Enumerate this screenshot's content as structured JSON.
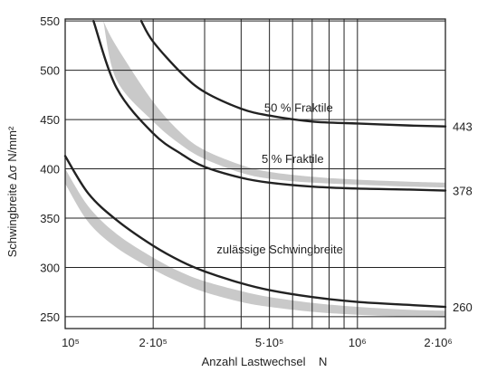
{
  "chart_data": {
    "type": "line",
    "title": "",
    "xlabel": "Anzahl Lastwechsel    N",
    "ylabel": "Schwingbreite Δσ N/mm²",
    "x_scale": "log",
    "xlim": [
      100000,
      2000000
    ],
    "ylim": [
      238,
      552
    ],
    "grid": true,
    "y_ticks": [
      250,
      300,
      350,
      400,
      450,
      500,
      550
    ],
    "y_tick_labels": [
      "250",
      "300",
      "350",
      "400",
      "450",
      "500",
      "550"
    ],
    "x_tick_labels": [
      {
        "x": 100000,
        "label": "10⁵"
      },
      {
        "x": 200000,
        "label": "2·10⁵"
      },
      {
        "x": 500000,
        "label": "5·10⁵"
      },
      {
        "x": 1000000,
        "label": "10⁶"
      },
      {
        "x": 2000000,
        "label": "2·10⁶"
      }
    ],
    "x_gridlines": [
      100000,
      200000,
      300000,
      400000,
      500000,
      600000,
      700000,
      800000,
      900000,
      1000000,
      2000000
    ],
    "series": [
      {
        "name": "50 % Fraktile",
        "end_label": "443",
        "color": "#222222",
        "x": [
          182000,
          200000,
          250000,
          300000,
          400000,
          500000,
          700000,
          1000000,
          1500000,
          2000000
        ],
        "y": [
          550,
          529,
          497,
          478,
          461,
          454,
          448,
          446,
          444,
          443
        ]
      },
      {
        "name": "5 % Fraktile",
        "end_label": "378",
        "color": "#222222",
        "x": [
          125000,
          150000,
          200000,
          250000,
          300000,
          400000,
          500000,
          700000,
          1000000,
          1500000,
          2000000
        ],
        "y": [
          550,
          482,
          436,
          415,
          402,
          391,
          386,
          382,
          380,
          379,
          378
        ]
      },
      {
        "name": "zulässige Schwingbreite",
        "end_label": "260",
        "color": "#222222",
        "x": [
          100000,
          120000,
          150000,
          200000,
          250000,
          300000,
          400000,
          500000,
          700000,
          1000000,
          1500000,
          2000000
        ],
        "y": [
          413,
          375,
          348,
          322,
          306,
          296,
          284,
          277,
          270,
          265,
          262,
          260
        ]
      }
    ],
    "bands": [
      {
        "color": "#c9c9c9",
        "x": [
          135000,
          150000,
          200000,
          250000,
          300000,
          400000,
          500000,
          700000,
          1000000,
          1500000,
          2000000
        ],
        "upper": [
          550,
          524,
          468,
          436,
          419,
          404,
          397,
          392,
          389,
          387,
          386
        ],
        "lower": [
          550,
          490,
          448,
          424,
          410,
          396,
          390,
          386,
          384,
          382,
          381
        ]
      },
      {
        "color": "#c9c9c9",
        "x": [
          100000,
          120000,
          150000,
          200000,
          250000,
          300000,
          400000,
          500000,
          700000,
          1000000,
          1500000,
          2000000
        ],
        "upper": [
          400,
          362,
          334,
          310,
          295,
          286,
          276,
          270,
          264,
          260,
          257,
          256
        ],
        "lower": [
          385,
          346,
          320,
          298,
          284,
          275,
          265,
          260,
          255,
          252,
          250,
          249
        ]
      }
    ],
    "annotations": [
      {
        "text": "50 % Fraktile",
        "x": 480000,
        "y": 458
      },
      {
        "text": "5 % Fraktile",
        "x": 470000,
        "y": 406
      },
      {
        "text": "zulässige Schwingbreite",
        "x": 330000,
        "y": 314
      }
    ]
  }
}
